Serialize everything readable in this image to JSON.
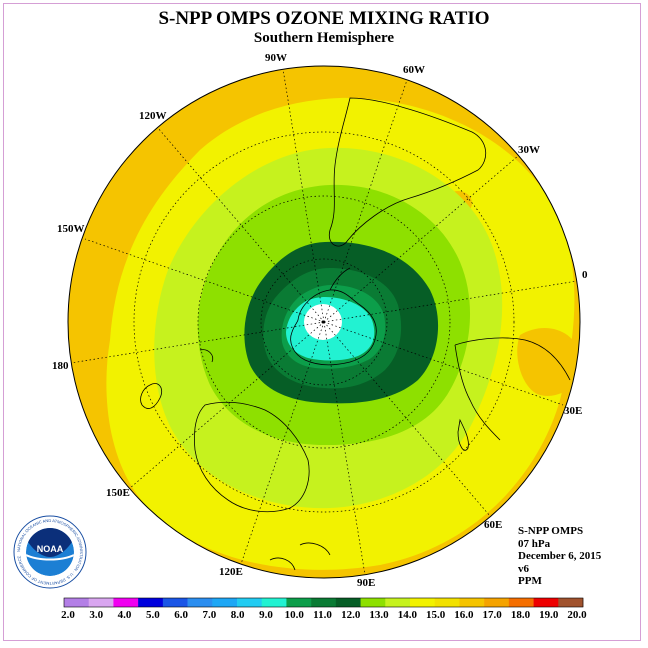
{
  "header": {
    "title": "S-NPP OMPS OZONE MIXING RATIO",
    "subtitle": "Southern Hemisphere"
  },
  "map": {
    "projection": "polar-stereographic-south",
    "longitude_labels": [
      {
        "text": "0",
        "lon": 0
      },
      {
        "text": "30E",
        "lon": 30
      },
      {
        "text": "60E",
        "lon": 60
      },
      {
        "text": "90E",
        "lon": 90
      },
      {
        "text": "120E",
        "lon": 120
      },
      {
        "text": "150E",
        "lon": 150
      },
      {
        "text": "180",
        "lon": 180
      },
      {
        "text": "150W",
        "lon": -150
      },
      {
        "text": "120W",
        "lon": -120
      },
      {
        "text": "90W",
        "lon": -90
      },
      {
        "text": "60W",
        "lon": -60
      },
      {
        "text": "30W",
        "lon": -30
      }
    ],
    "field_description": "ozone mixing ratio contours, lowest values over the south pole"
  },
  "info": {
    "instrument": "S-NPP OMPS",
    "level": "07 hPa",
    "date": "December 6, 2015",
    "version": "v6",
    "units": "PPM"
  },
  "logo": {
    "text": "NOAA",
    "ring_text": "NATIONAL OCEANIC AND ATMOSPHERIC ADMINISTRATION · U.S. DEPARTMENT OF COMMERCE"
  },
  "colorbar": {
    "labels": [
      "2.0",
      "3.0",
      "4.0",
      "5.0",
      "6.0",
      "7.0",
      "8.0",
      "9.0",
      "10.0",
      "11.0",
      "12.0",
      "13.0",
      "14.0",
      "15.0",
      "16.0",
      "17.0",
      "18.0",
      "19.0",
      "20.0"
    ],
    "colors": [
      "#b37fe6",
      "#d9a6f0",
      "#f000f0",
      "#0000dd",
      "#1a55e6",
      "#2b8ef0",
      "#1ea7f5",
      "#22ccf2",
      "#22f2d2",
      "#0c9e4a",
      "#0a7b34",
      "#065e26",
      "#8ee000",
      "#c6f21e",
      "#f2f200",
      "#f2e100",
      "#f5c400",
      "#f5a300",
      "#f56e00",
      "#ee0000",
      "#a0522d"
    ]
  },
  "colors": {
    "frame": "#d59fd5",
    "coastline": "#000000"
  }
}
